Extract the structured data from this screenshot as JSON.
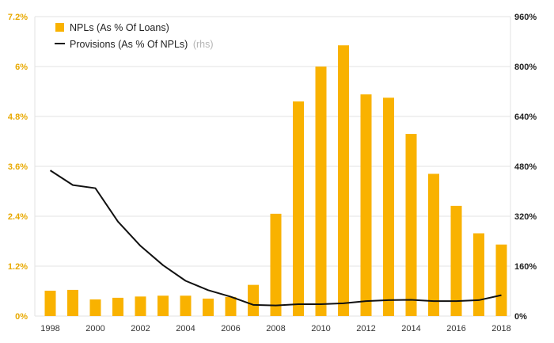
{
  "chart_data": {
    "type": "bar",
    "x": [
      "1998",
      "1999",
      "2000",
      "2001",
      "2002",
      "2003",
      "2004",
      "2005",
      "2006",
      "2007",
      "2008",
      "2009",
      "2010",
      "2011",
      "2012",
      "2013",
      "2014",
      "2015",
      "2016",
      "2017",
      "2018"
    ],
    "x_tick_labels": [
      "1998",
      "2000",
      "2002",
      "2004",
      "2006",
      "2008",
      "2010",
      "2012",
      "2014",
      "2016",
      "2018"
    ],
    "series": [
      {
        "name": "NPLs (As % Of Loans)",
        "type": "bar",
        "axis": "left",
        "color": "#f9b200",
        "values": [
          0.61,
          0.63,
          0.4,
          0.44,
          0.47,
          0.49,
          0.49,
          0.42,
          0.46,
          0.75,
          2.46,
          5.16,
          6.0,
          6.51,
          5.33,
          5.25,
          4.38,
          3.42,
          2.65,
          1.99,
          1.72
        ]
      },
      {
        "name": "Provisions (As % Of NPLs)",
        "name_suffix": "(rhs)",
        "type": "line",
        "axis": "right",
        "color": "#111111",
        "values": [
          467,
          420,
          410,
          303,
          225,
          163,
          113,
          83,
          62,
          36,
          34,
          38,
          38,
          41,
          48,
          51,
          52,
          48,
          48,
          51,
          67
        ]
      }
    ],
    "y_left": {
      "range": [
        0,
        7.2
      ],
      "ticks": [
        0,
        1.2,
        2.4,
        3.6,
        4.8,
        6,
        7.2
      ],
      "tick_labels": [
        "0%",
        "1.2%",
        "2.4%",
        "3.6%",
        "4.8%",
        "6%",
        "7.2%"
      ],
      "color": "#e8a900"
    },
    "y_right": {
      "range": [
        0,
        960
      ],
      "ticks": [
        0,
        160,
        320,
        480,
        640,
        800,
        960
      ],
      "tick_labels": [
        "0%",
        "160%",
        "320%",
        "480%",
        "640%",
        "800%",
        "960%"
      ]
    },
    "grid": true,
    "legend_position": "top-left"
  }
}
